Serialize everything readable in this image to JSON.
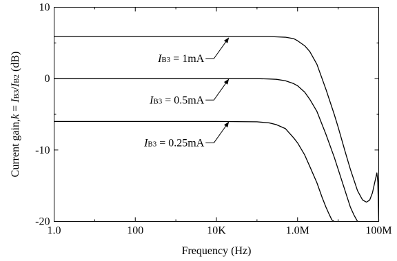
{
  "chart_data": {
    "type": "line",
    "xlabel": "Frequency (Hz)",
    "ylabel": {
      "prefix": "Current gain,",
      "k": "k",
      "eq": " = ",
      "num_main": "I",
      "num_sub": "B3",
      "slash": "/",
      "den_main": "I",
      "den_sub": "B2",
      "unit": " (dB)"
    },
    "xscale": "log",
    "xlim": [
      1,
      100000000
    ],
    "ylim": [
      -20,
      10
    ],
    "grid": false,
    "x_ticks": [
      {
        "value": 1,
        "label": "1.0"
      },
      {
        "value": 100,
        "label": "100"
      },
      {
        "value": 10000,
        "label": "10K"
      },
      {
        "value": 1000000,
        "label": "1.0M"
      },
      {
        "value": 100000000,
        "label": "100M"
      }
    ],
    "y_ticks": [
      {
        "value": 10,
        "label": "10"
      },
      {
        "value": 0,
        "label": "0"
      },
      {
        "value": -10,
        "label": "-10"
      },
      {
        "value": -20,
        "label": "-20"
      }
    ],
    "series": [
      {
        "name": "IB3 = 1mA",
        "label_main": "I",
        "label_sub": "B3",
        "label_rest": " = 1mA",
        "label_anchor": [
          5000,
          2.8
        ],
        "arrow_target": [
          20000,
          5.8
        ],
        "x": [
          1,
          10000,
          100000,
          200000,
          300000,
          500000,
          800000,
          1000000,
          1500000,
          2000000,
          3000000,
          5000000,
          8000000,
          10000000,
          15000000,
          20000000,
          30000000,
          40000000,
          50000000,
          60000000,
          70000000,
          80000000,
          90000000,
          95000000,
          100000000
        ],
        "y": [
          5.9,
          5.9,
          5.9,
          5.9,
          5.85,
          5.8,
          5.6,
          5.3,
          4.6,
          3.8,
          2.0,
          -1.5,
          -5.0,
          -6.8,
          -10.3,
          -12.7,
          -15.7,
          -17.0,
          -17.3,
          -17.0,
          -16.0,
          -14.5,
          -13.2,
          -14.5,
          -20.0
        ]
      },
      {
        "name": "IB3 = 0.5mA",
        "label_main": "I",
        "label_sub": "B3",
        "label_rest": " = 0.5mA",
        "label_anchor": [
          5000,
          -3.0
        ],
        "arrow_target": [
          20000,
          0.0
        ],
        "x": [
          1,
          10000,
          100000,
          200000,
          300000,
          500000,
          800000,
          1000000,
          1500000,
          2000000,
          3000000,
          5000000,
          8000000,
          10000000,
          15000000,
          20000000,
          25000000,
          30000000
        ],
        "y": [
          0.0,
          0.0,
          0.0,
          -0.05,
          -0.1,
          -0.3,
          -0.7,
          -1.0,
          -1.9,
          -2.9,
          -4.6,
          -7.8,
          -11.0,
          -12.7,
          -15.8,
          -18.0,
          -19.2,
          -20.0
        ]
      },
      {
        "name": "IB3 = 0.25mA",
        "label_main": "I",
        "label_sub": "B3",
        "label_rest": " = 0.25mA",
        "label_anchor": [
          5000,
          -9.0
        ],
        "arrow_target": [
          20000,
          -6.0
        ],
        "x": [
          1,
          10000,
          100000,
          200000,
          300000,
          500000,
          800000,
          1000000,
          1500000,
          2000000,
          3000000,
          4000000,
          5000000,
          6000000,
          7000000,
          8000000
        ],
        "y": [
          -6.0,
          -6.0,
          -6.05,
          -6.2,
          -6.45,
          -7.0,
          -8.3,
          -9.0,
          -10.7,
          -12.3,
          -14.6,
          -16.6,
          -18.0,
          -19.0,
          -19.8,
          -20.0
        ]
      }
    ]
  }
}
